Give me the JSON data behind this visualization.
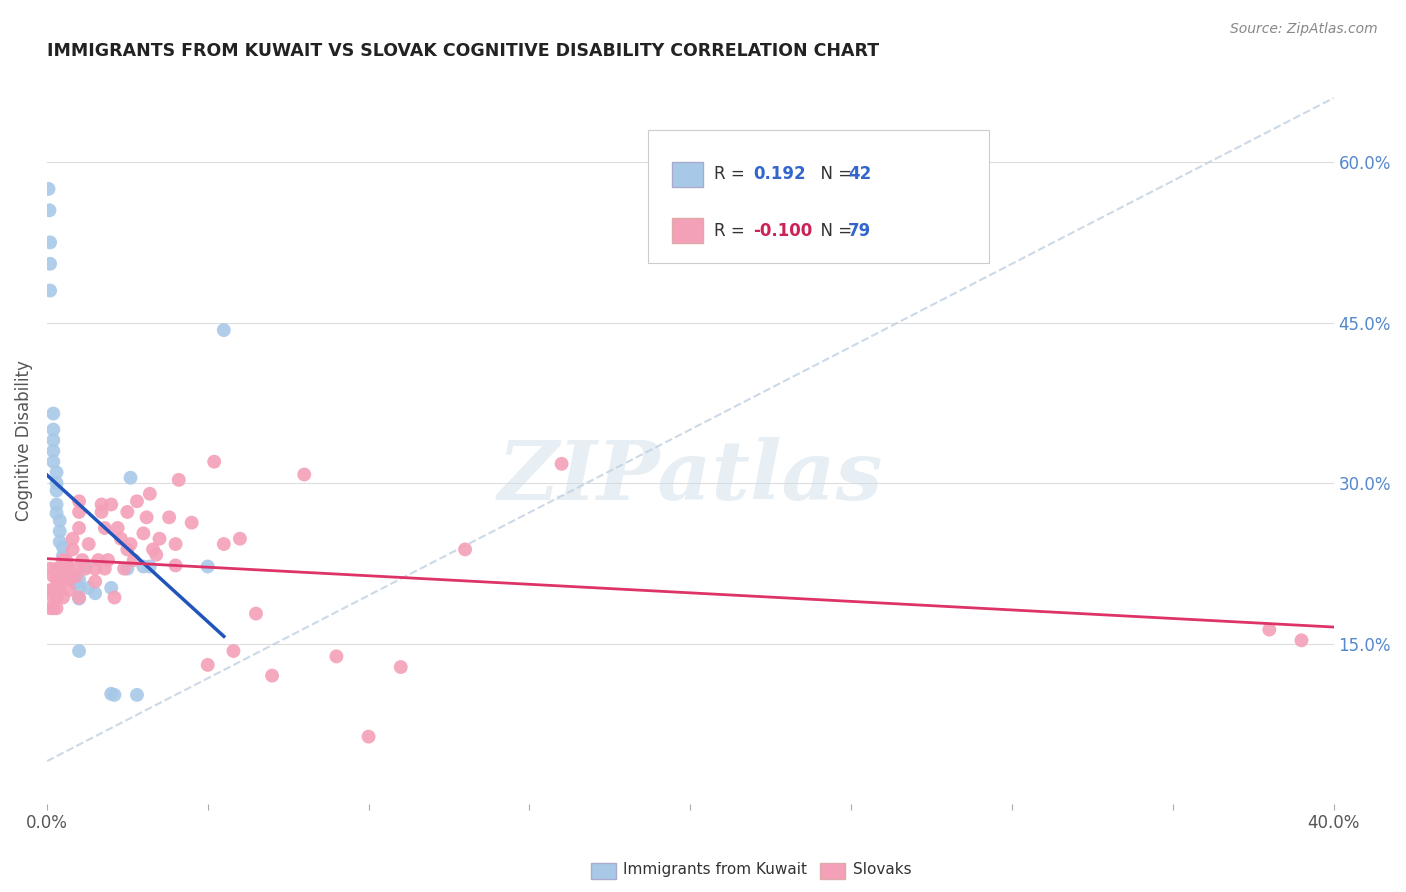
{
  "title": "IMMIGRANTS FROM KUWAIT VS SLOVAK COGNITIVE DISABILITY CORRELATION CHART",
  "source": "Source: ZipAtlas.com",
  "ylabel": "Cognitive Disability",
  "watermark": "ZIPatlas",
  "xlim": [
    0.0,
    0.4
  ],
  "ylim": [
    0.0,
    0.68
  ],
  "kuwait_color": "#a8c8e8",
  "slovak_color": "#f4a0b8",
  "kuwait_line_color": "#2255bb",
  "slovak_line_color": "#dd3366",
  "diag_color": "#c0d0e0",
  "legend_R1": "0.192",
  "legend_N1": "42",
  "legend_R2": "-0.100",
  "legend_N2": "79",
  "kuwait_x": [
    0.0005,
    0.0008,
    0.001,
    0.001,
    0.001,
    0.002,
    0.002,
    0.002,
    0.002,
    0.002,
    0.003,
    0.003,
    0.003,
    0.003,
    0.003,
    0.004,
    0.004,
    0.004,
    0.005,
    0.005,
    0.006,
    0.006,
    0.007,
    0.008,
    0.009,
    0.01,
    0.01,
    0.01,
    0.01,
    0.012,
    0.013,
    0.015,
    0.02,
    0.02,
    0.021,
    0.025,
    0.026,
    0.028,
    0.03,
    0.032,
    0.05,
    0.055
  ],
  "kuwait_y": [
    0.575,
    0.555,
    0.525,
    0.505,
    0.48,
    0.365,
    0.35,
    0.34,
    0.33,
    0.32,
    0.31,
    0.3,
    0.293,
    0.28,
    0.272,
    0.265,
    0.255,
    0.245,
    0.24,
    0.232,
    0.225,
    0.218,
    0.212,
    0.208,
    0.207,
    0.21,
    0.202,
    0.192,
    0.143,
    0.222,
    0.202,
    0.197,
    0.202,
    0.103,
    0.102,
    0.22,
    0.305,
    0.102,
    0.222,
    0.222,
    0.222,
    0.443
  ],
  "slovak_x": [
    0.001,
    0.001,
    0.001,
    0.002,
    0.002,
    0.002,
    0.002,
    0.003,
    0.003,
    0.003,
    0.003,
    0.003,
    0.004,
    0.004,
    0.004,
    0.005,
    0.005,
    0.005,
    0.005,
    0.006,
    0.006,
    0.007,
    0.007,
    0.007,
    0.008,
    0.008,
    0.009,
    0.009,
    0.01,
    0.01,
    0.01,
    0.01,
    0.011,
    0.012,
    0.013,
    0.015,
    0.015,
    0.016,
    0.017,
    0.017,
    0.018,
    0.018,
    0.019,
    0.02,
    0.021,
    0.022,
    0.023,
    0.024,
    0.025,
    0.025,
    0.026,
    0.027,
    0.028,
    0.03,
    0.031,
    0.032,
    0.033,
    0.034,
    0.035,
    0.038,
    0.04,
    0.04,
    0.041,
    0.045,
    0.05,
    0.052,
    0.055,
    0.058,
    0.06,
    0.065,
    0.07,
    0.08,
    0.09,
    0.1,
    0.11,
    0.13,
    0.16,
    0.38,
    0.39
  ],
  "slovak_y": [
    0.22,
    0.2,
    0.183,
    0.213,
    0.2,
    0.193,
    0.183,
    0.22,
    0.21,
    0.2,
    0.193,
    0.183,
    0.22,
    0.21,
    0.2,
    0.228,
    0.22,
    0.21,
    0.193,
    0.228,
    0.213,
    0.22,
    0.21,
    0.2,
    0.248,
    0.238,
    0.22,
    0.213,
    0.283,
    0.273,
    0.258,
    0.193,
    0.228,
    0.22,
    0.243,
    0.22,
    0.208,
    0.228,
    0.28,
    0.273,
    0.258,
    0.22,
    0.228,
    0.28,
    0.193,
    0.258,
    0.248,
    0.22,
    0.273,
    0.238,
    0.243,
    0.228,
    0.283,
    0.253,
    0.268,
    0.29,
    0.238,
    0.233,
    0.248,
    0.268,
    0.243,
    0.223,
    0.303,
    0.263,
    0.13,
    0.32,
    0.243,
    0.143,
    0.248,
    0.178,
    0.12,
    0.308,
    0.138,
    0.063,
    0.128,
    0.238,
    0.318,
    0.163,
    0.153
  ]
}
